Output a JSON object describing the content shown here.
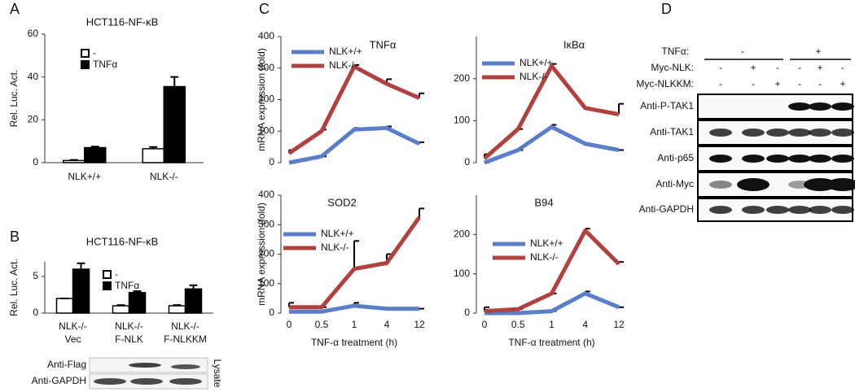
{
  "panel_labels": [
    "A",
    "B",
    "C",
    "D"
  ],
  "chart_data": [
    {
      "type": "bar",
      "title": "HCT116-NF-κB",
      "ylabel": "Rel. Luc. Act.",
      "categories": [
        "NLK+/+",
        "NLK-/-"
      ],
      "series": [
        {
          "name": "-",
          "color": "#ffffff",
          "values": [
            1,
            6.5
          ],
          "errors": [
            0.3,
            0.8
          ]
        },
        {
          "name": "TNFα",
          "color": "#000000",
          "values": [
            7,
            35.5
          ],
          "errors": [
            0.5,
            4.5
          ]
        }
      ],
      "ylim": [
        0,
        60
      ],
      "yticks": [
        0,
        20,
        40,
        60
      ]
    },
    {
      "type": "bar",
      "title": "HCT116-NF-κB",
      "ylabel": "Rel. Luc. Act.",
      "categories": [
        [
          "NLK-/-",
          "Vec"
        ],
        [
          "NLK-/-",
          "F-NLK"
        ],
        [
          "NLK-/-",
          "F-NLKKM"
        ]
      ],
      "series": [
        {
          "name": "-",
          "color": "#ffffff",
          "values": [
            2,
            1,
            1
          ],
          "errors": [
            0,
            0.1,
            0.1
          ]
        },
        {
          "name": "TNFα",
          "color": "#000000",
          "values": [
            6,
            2.8,
            3.3
          ],
          "errors": [
            0.8,
            0.2,
            0.5
          ]
        }
      ],
      "ylim": [
        0,
        7
      ],
      "yticks": [
        0,
        5
      ]
    },
    {
      "type": "line",
      "title": "TNFα",
      "ylabel": "mRNA expression (fold)",
      "categories": [
        null,
        null,
        null,
        null,
        null
      ],
      "series": [
        {
          "name": "NLK+/+",
          "color": "#5b7ec9",
          "values": [
            0,
            20,
            105,
            110,
            60
          ],
          "errors": [
            0,
            0,
            5,
            5,
            5
          ]
        },
        {
          "name": "NLK-/-",
          "color": "#b0413e",
          "values": [
            30,
            100,
            305,
            250,
            205
          ],
          "errors": [
            10,
            5,
            5,
            15,
            15
          ]
        }
      ],
      "ylim": [
        0,
        400
      ],
      "yticks": [
        0,
        100,
        200,
        300,
        400
      ]
    },
    {
      "type": "line",
      "title": "IκBα",
      "categories": [
        null,
        null,
        null,
        null,
        null
      ],
      "series": [
        {
          "name": "NLK+/+",
          "color": "#5b7ec9",
          "values": [
            0,
            30,
            85,
            45,
            30
          ],
          "errors": [
            0,
            0,
            5,
            0,
            0
          ]
        },
        {
          "name": "NLK-/-",
          "color": "#b0413e",
          "values": [
            10,
            80,
            230,
            130,
            115
          ],
          "errors": [
            10,
            0,
            5,
            0,
            25
          ]
        }
      ],
      "ylim": [
        0,
        300
      ],
      "yticks": [
        0,
        100,
        200
      ]
    },
    {
      "type": "line",
      "title": "SOD2",
      "ylabel": "mRNA expression (fold)",
      "xlabel": "TNF-α treatment (h)",
      "categories": [
        "0",
        "0.5",
        "1",
        "4",
        "12"
      ],
      "series": [
        {
          "name": "NLK+/+",
          "color": "#5b7ec9",
          "values": [
            5,
            5,
            25,
            15,
            15
          ],
          "errors": [
            0,
            0,
            10,
            0,
            0
          ]
        },
        {
          "name": "NLK-/-",
          "color": "#b0413e",
          "values": [
            20,
            20,
            150,
            170,
            325
          ],
          "errors": [
            15,
            0,
            95,
            30,
            30
          ]
        }
      ],
      "ylim": [
        0,
        400
      ],
      "yticks": [
        0,
        100,
        200,
        300,
        400
      ]
    },
    {
      "type": "line",
      "title": "B94",
      "xlabel": "TNF-α treatment (h)",
      "categories": [
        "0",
        "0.5",
        "1",
        "4",
        "12"
      ],
      "series": [
        {
          "name": "NLK+/+",
          "color": "#5b7ec9",
          "values": [
            0,
            0,
            5,
            50,
            15
          ],
          "errors": [
            0,
            0,
            0,
            5,
            0
          ]
        },
        {
          "name": "NLK-/-",
          "color": "#b0413e",
          "values": [
            5,
            10,
            50,
            210,
            125
          ],
          "errors": [
            10,
            0,
            0,
            5,
            5
          ]
        }
      ],
      "ylim": [
        0,
        300
      ],
      "yticks": [
        0,
        100,
        200
      ]
    }
  ],
  "blot_b": {
    "rows": [
      "Anti-Flag",
      "Anti-GAPDH"
    ],
    "side_label": "Lysate"
  },
  "blot_d": {
    "conditions": [
      {
        "label": "TNFα:",
        "marks": [
          "-",
          "+"
        ]
      },
      {
        "label": "Myc-NLK:",
        "marks": [
          "-",
          "+",
          "-",
          "-",
          "+",
          "-"
        ]
      },
      {
        "label": "Myc-NLKKM:",
        "marks": [
          "-",
          "-",
          "+",
          "-",
          "-",
          "+"
        ]
      }
    ],
    "rows": [
      "Anti-P-TAK1",
      "Anti-TAK1",
      "Anti-p65",
      "Anti-Myc",
      "Anti-GAPDH"
    ]
  }
}
